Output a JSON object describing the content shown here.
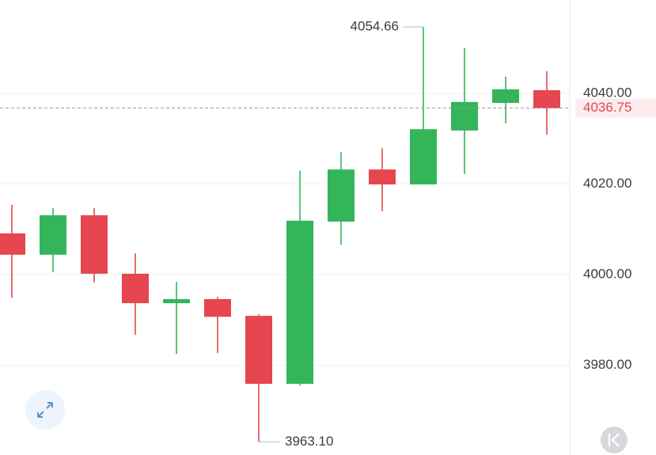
{
  "chart_data": {
    "type": "candlestick",
    "series": [
      {
        "up_color": "#34b55a",
        "down_color": "#e5464f",
        "open": [
          4009.1,
          4004.4,
          4013.1,
          4000.2,
          3993.7,
          3994.6,
          3990.9,
          3975.9,
          4011.7,
          4023.2,
          4019.9,
          4031.8,
          4037.9,
          4040.7
        ],
        "high": [
          4015.4,
          4014.7,
          4014.7,
          4004.7,
          3998.4,
          3995.1,
          3991.3,
          4022.9,
          4027.1,
          4027.9,
          4054.66,
          4050.0,
          4043.7,
          4044.9
        ],
        "low": [
          3994.9,
          4000.5,
          3998.3,
          3986.7,
          3982.5,
          3982.7,
          3963.1,
          3975.5,
          4006.6,
          4014.0,
          4019.9,
          4022.2,
          4033.4,
          4030.9
        ],
        "close": [
          4004.4,
          4013.1,
          4000.2,
          3993.7,
          3994.6,
          3990.7,
          3975.9,
          4011.9,
          4023.2,
          4019.9,
          4032.1,
          4038.1,
          4040.9,
          4036.75
        ]
      }
    ],
    "ylim": [
      3960.2,
      4060.6
    ],
    "yticks": [
      {
        "value": 3980,
        "label": "3980.00"
      },
      {
        "value": 4000,
        "label": "4000.00"
      },
      {
        "value": 4020,
        "label": "4020.00"
      },
      {
        "value": 4040,
        "label": "4040.00"
      }
    ],
    "grid": true,
    "last_price": 4036.75,
    "annotations": [
      {
        "value": 4054.66,
        "label": "4054.66"
      },
      {
        "value": 3963.1,
        "label": "3963.10"
      }
    ]
  }
}
